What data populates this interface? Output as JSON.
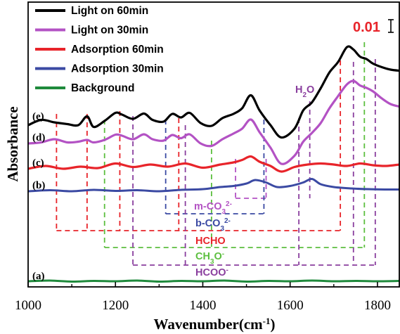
{
  "chart_data": {
    "type": "line",
    "title": "",
    "xlabel": "Wavenumber(cm",
    "xlabel_sup": "-1",
    "xlabel_close": ")",
    "ylabel": "Absorbance",
    "xlim": [
      1000,
      1850
    ],
    "x_ticks": [
      1000,
      1200,
      1400,
      1600,
      1800
    ],
    "scale_bar": {
      "label": "0.01",
      "color": "#e8242a"
    },
    "legend_position": "top-left",
    "series": [
      {
        "name": "Light on 60min",
        "label": "(e)",
        "color": "#000000",
        "x": [
          1000,
          1030,
          1060,
          1090,
          1115,
          1135,
          1150,
          1175,
          1200,
          1215,
          1240,
          1265,
          1285,
          1310,
          1330,
          1350,
          1370,
          1395,
          1420,
          1445,
          1470,
          1490,
          1510,
          1530,
          1555,
          1580,
          1610,
          1630,
          1650,
          1670,
          1690,
          1710,
          1730,
          1745,
          1760,
          1775,
          1790,
          1810,
          1830,
          1850
        ],
        "y": [
          0.0,
          0.0015,
          0.0008,
          0.0003,
          0.0,
          0.0025,
          -0.0005,
          0.0012,
          0.0035,
          0.003,
          0.0018,
          0.0033,
          0.0015,
          0.001,
          0.0032,
          0.0022,
          0.0035,
          0.0006,
          -0.0002,
          0.002,
          0.0032,
          0.0048,
          0.0085,
          0.0042,
          0.0,
          -0.0035,
          -0.001,
          0.0042,
          0.0065,
          0.0105,
          0.015,
          0.018,
          0.0222,
          0.0215,
          0.0195,
          0.0188,
          0.0175,
          0.0165,
          0.0158,
          0.0155
        ]
      },
      {
        "name": "Light on 30min",
        "label": "(d)",
        "color": "#b352c4",
        "x": [
          1000,
          1030,
          1060,
          1090,
          1115,
          1135,
          1150,
          1175,
          1200,
          1215,
          1240,
          1265,
          1285,
          1310,
          1330,
          1350,
          1370,
          1395,
          1420,
          1445,
          1470,
          1490,
          1510,
          1530,
          1555,
          1580,
          1610,
          1630,
          1650,
          1670,
          1690,
          1710,
          1730,
          1745,
          1760,
          1775,
          1790,
          1810,
          1830,
          1850
        ],
        "y": [
          0.0,
          0.0003,
          0.0012,
          0.0003,
          0.0005,
          0.001,
          0.0003,
          0.001,
          0.0025,
          0.0022,
          0.0012,
          0.0026,
          0.0012,
          0.0008,
          0.0024,
          0.0015,
          0.0026,
          0.0,
          -0.0007,
          0.0012,
          0.0028,
          0.0042,
          0.0068,
          0.0032,
          -0.0012,
          -0.0058,
          -0.0035,
          0.0005,
          0.003,
          0.0058,
          0.01,
          0.0135,
          0.0168,
          0.0178,
          0.0165,
          0.0158,
          0.0148,
          0.0128,
          0.0112,
          0.0105
        ]
      },
      {
        "name": "Adsorption 60min",
        "label": "(c)",
        "color": "#e8242a",
        "x": [
          1000,
          1040,
          1080,
          1120,
          1160,
          1200,
          1240,
          1280,
          1320,
          1360,
          1400,
          1440,
          1470,
          1490,
          1510,
          1530,
          1555,
          1580,
          1610,
          1640,
          1670,
          1700,
          1730,
          1760,
          1790,
          1820,
          1850
        ],
        "y": [
          0.0,
          0.0008,
          0.0,
          0.0006,
          0.0002,
          0.0015,
          0.0005,
          0.0012,
          0.0006,
          0.0015,
          0.0003,
          0.0012,
          0.0018,
          0.0025,
          0.0035,
          0.002,
          0.0008,
          -0.0008,
          0.0005,
          0.0012,
          0.0015,
          0.0012,
          0.0008,
          0.0015,
          0.001,
          0.0008,
          0.0012
        ]
      },
      {
        "name": "Adsorption 30min",
        "label": "(b)",
        "color": "#3b4aa3",
        "x": [
          1000,
          1050,
          1100,
          1150,
          1200,
          1250,
          1300,
          1350,
          1400,
          1440,
          1470,
          1500,
          1520,
          1545,
          1570,
          1600,
          1630,
          1650,
          1670,
          1700,
          1740,
          1780,
          1820,
          1850
        ],
        "y": [
          0.0,
          0.0003,
          0.0,
          0.0004,
          0.0001,
          0.0003,
          0.0,
          0.0004,
          0.0006,
          0.0012,
          0.0015,
          0.0022,
          0.0032,
          0.0025,
          0.0012,
          0.0015,
          0.0025,
          0.0035,
          0.002,
          0.0012,
          0.0008,
          0.0006,
          0.0005,
          0.0005
        ]
      },
      {
        "name": "Background",
        "label": "(a)",
        "color": "#1f8a3c",
        "x": [
          1000,
          1050,
          1100,
          1150,
          1200,
          1250,
          1300,
          1350,
          1400,
          1450,
          1500,
          1550,
          1600,
          1650,
          1700,
          1750,
          1800,
          1850
        ],
        "y": [
          0.0,
          0.0002,
          -0.0001,
          0.0001,
          0.0,
          0.0002,
          -0.0001,
          0.0001,
          0.0,
          0.0002,
          -0.0001,
          0.0001,
          0.0,
          0.0002,
          0.0,
          0.0001,
          0.0,
          0.0001
        ]
      }
    ],
    "peak_annotations": [
      {
        "label": "m-CO",
        "sup": "2-",
        "sub": "3",
        "color": "#b352c4",
        "lines": [
          1475,
          1545
        ]
      },
      {
        "label": "b-CO",
        "sup": "2-",
        "sub": "3",
        "color": "#3b4aa3",
        "lines": [
          1315,
          1540
        ]
      },
      {
        "label": "HCHO",
        "color": "#e8242a",
        "lines": [
          1065,
          1135,
          1210,
          1345,
          1715
        ]
      },
      {
        "label": "CH",
        "sub": "3",
        "tail": "O",
        "sup": "-",
        "color": "#5cbf3f",
        "lines": [
          1175,
          1420,
          1770
        ]
      },
      {
        "label": "HCOO",
        "sup": "-",
        "color": "#8a3f9e",
        "lines": [
          1240,
          1360,
          1620,
          1745,
          1795
        ]
      },
      {
        "label": "H",
        "sub": "2",
        "tail": "O",
        "color": "#8a3f9e",
        "lines": [
          1645
        ]
      }
    ]
  }
}
